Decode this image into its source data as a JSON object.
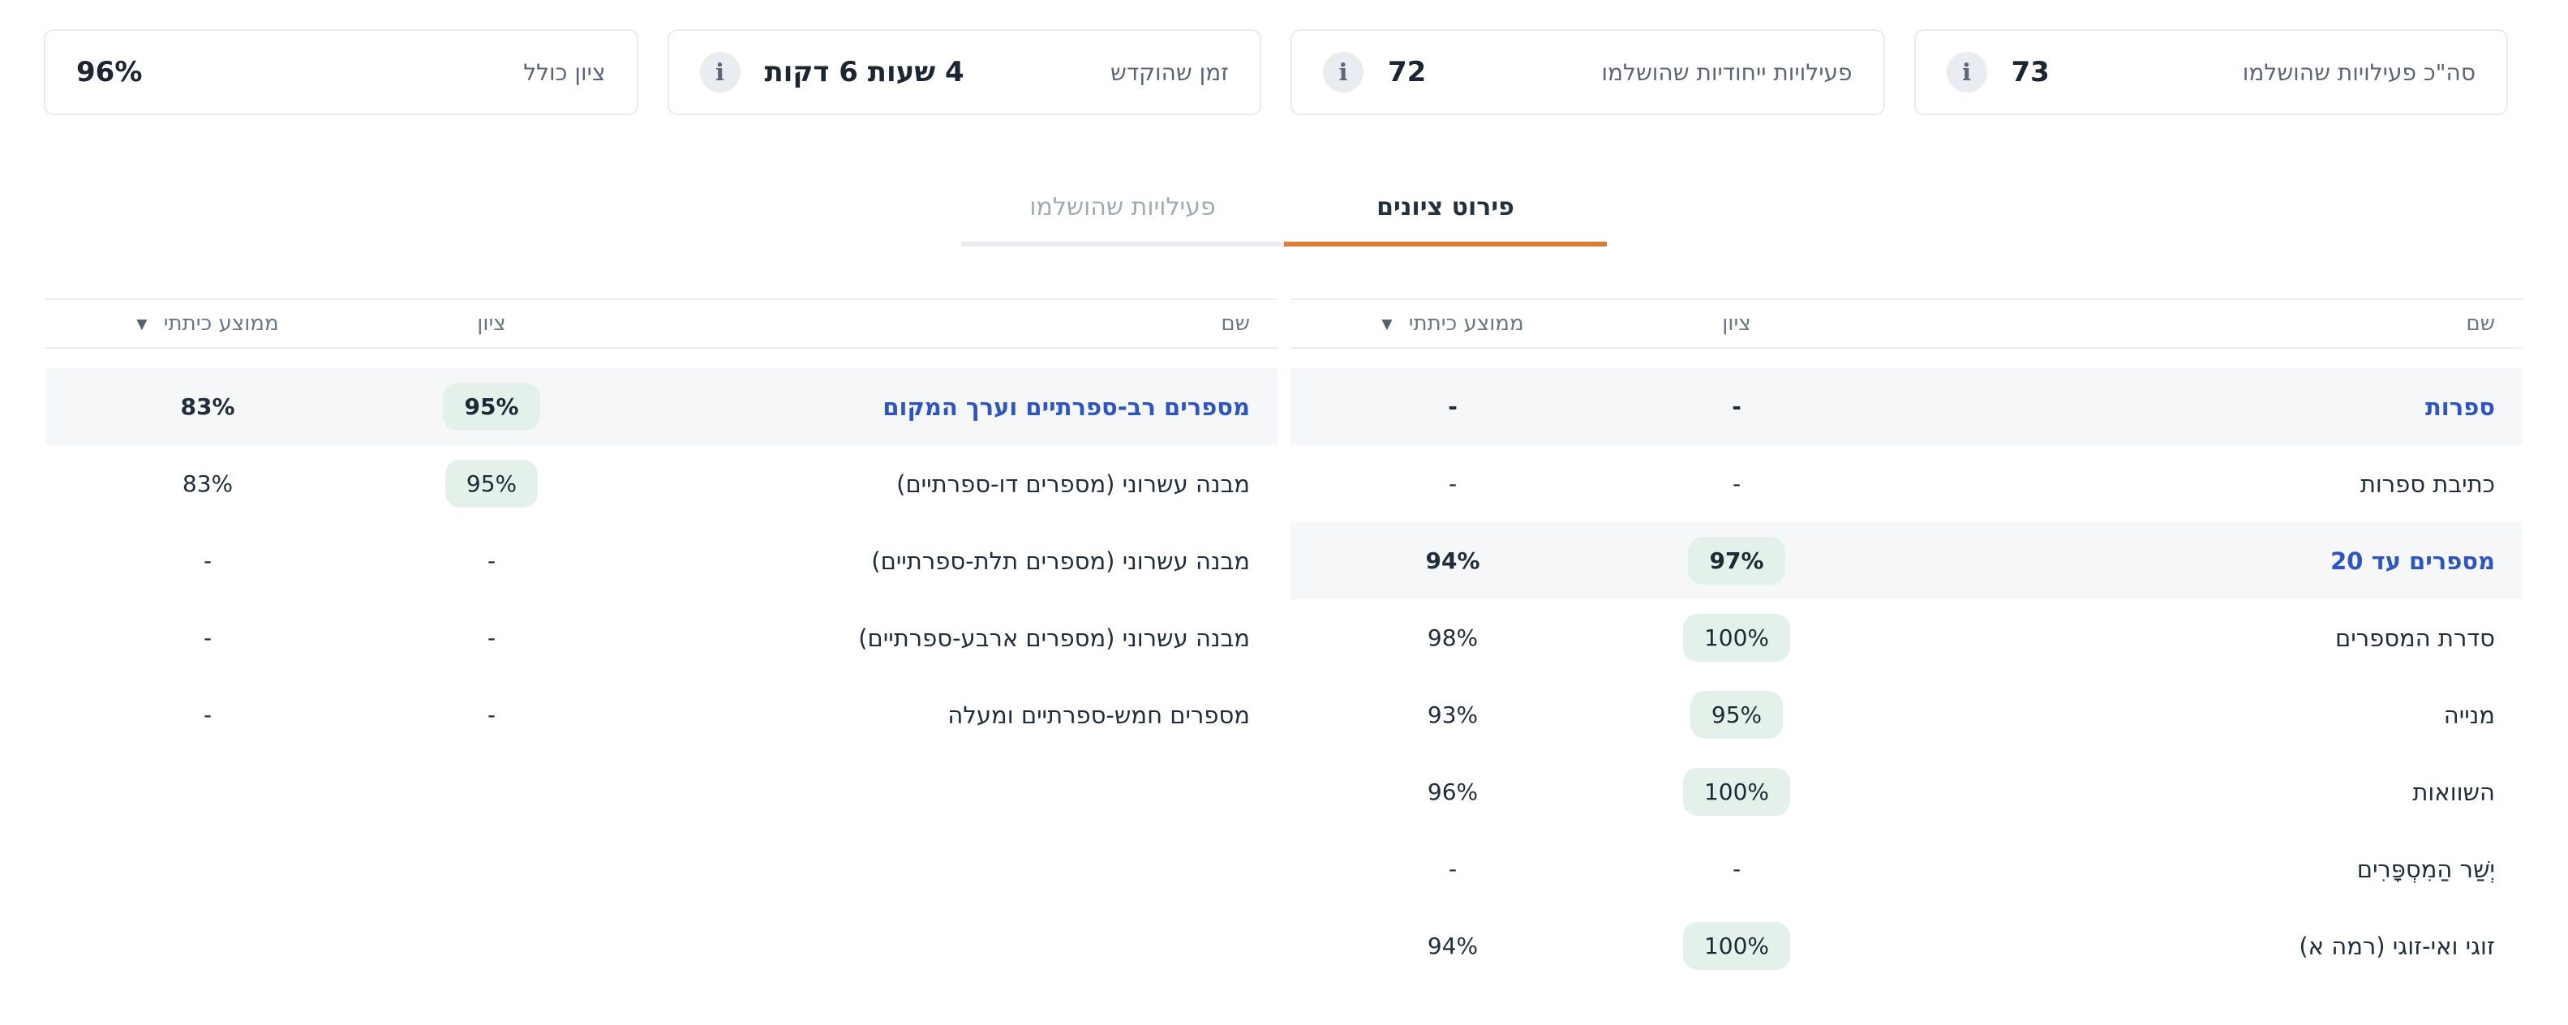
{
  "colors": {
    "accent_orange": "#dd7b2e",
    "link_blue": "#2d55c8",
    "pill_bg": "#e4f1ea",
    "highlight_bg": "#f5f7f9"
  },
  "cards": [
    {
      "label": "סה\"כ פעילויות שהושלמו",
      "value": "73",
      "has_info": true
    },
    {
      "label": "פעילויות ייחודיות שהושלמו",
      "value": "72",
      "has_info": true
    },
    {
      "label": "זמן שהוקדש",
      "value": "4 שעות 6 דקות",
      "has_info": true
    },
    {
      "label": "ציון כולל",
      "value": "96%",
      "has_info": false
    }
  ],
  "tabs": [
    {
      "label": "פירוט ציונים",
      "active": true
    },
    {
      "label": "פעילויות שהושלמו",
      "active": false
    }
  ],
  "table_headers": {
    "name": "שם",
    "score": "ציון",
    "class_avg": "ממוצע כיתתי",
    "sort_icon": "▼"
  },
  "tables": [
    {
      "position": "right",
      "rows": [
        {
          "name": "ספרות",
          "score": "-",
          "avg": "-",
          "is_category": true
        },
        {
          "name": "כתיבת ספרות",
          "score": "-",
          "avg": "-",
          "is_category": false
        },
        {
          "name": "מספרים עד 20",
          "score": "97%",
          "avg": "94%",
          "is_category": true
        },
        {
          "name": "סדרת המספרים",
          "score": "100%",
          "avg": "98%",
          "is_category": false
        },
        {
          "name": "מנייה",
          "score": "95%",
          "avg": "93%",
          "is_category": false
        },
        {
          "name": "השוואות",
          "score": "100%",
          "avg": "96%",
          "is_category": false
        },
        {
          "name": "יְשַׁר הַמִסְפָּרִים",
          "score": "-",
          "avg": "-",
          "is_category": false
        },
        {
          "name": "זוגי ואי-זוגי (רמה א)",
          "score": "100%",
          "avg": "94%",
          "is_category": false
        }
      ]
    },
    {
      "position": "left",
      "rows": [
        {
          "name": "מספרים רב-ספרתיים וערך המקום",
          "score": "95%",
          "avg": "83%",
          "is_category": true
        },
        {
          "name": "מבנה עשרוני (מספרים דו-ספרתיים)",
          "score": "95%",
          "avg": "83%",
          "is_category": false
        },
        {
          "name": "מבנה עשרוני (מספרים תלת-ספרתיים)",
          "score": "-",
          "avg": "-",
          "is_category": false
        },
        {
          "name": "מבנה עשרוני (מספרים ארבע-ספרתיים)",
          "score": "-",
          "avg": "-",
          "is_category": false
        },
        {
          "name": "מספרים חמש-ספרתיים ומעלה",
          "score": "-",
          "avg": "-",
          "is_category": false
        }
      ]
    }
  ]
}
